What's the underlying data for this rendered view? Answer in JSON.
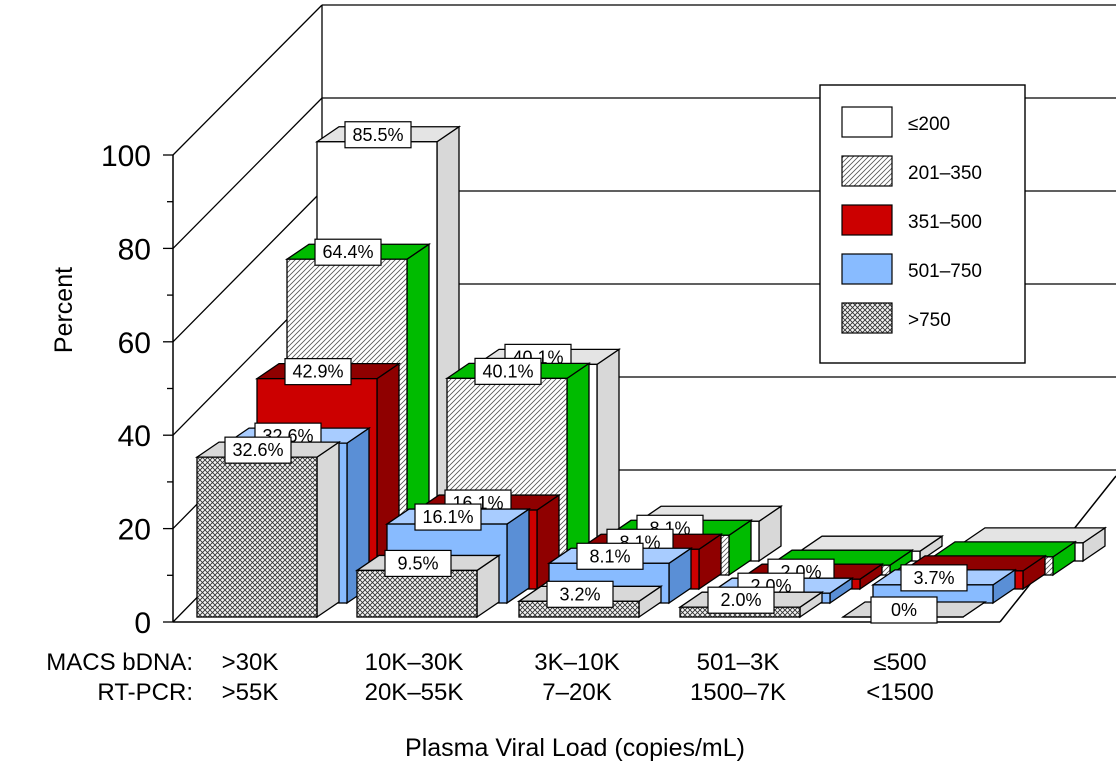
{
  "chart_data": {
    "type": "bar",
    "ylabel": "Percent",
    "xlabel": "Plasma Viral Load (copies/mL)",
    "ylim": [
      0,
      100
    ],
    "yticks": [
      "0",
      "20",
      "40",
      "60",
      "80",
      "100"
    ],
    "row_labels": [
      "MACS bDNA:",
      "RT-PCR:"
    ],
    "categories": [
      {
        "bdna": ">30K",
        "rtpcr": ">55K"
      },
      {
        "bdna": "10K–30K",
        "rtpcr": "20K–55K"
      },
      {
        "bdna": "3K–10K",
        "rtpcr": "7–20K"
      },
      {
        "bdna": "501–3K",
        "rtpcr": "1500–7K"
      },
      {
        "bdna": "≤500",
        "rtpcr": "<1500"
      }
    ],
    "series": [
      {
        "name": "≤200",
        "color": "#ffffff",
        "pattern": "none",
        "values": [
          85.5,
          40.1,
          8.1,
          2.0,
          3.7
        ],
        "labels": [
          "85.5%",
          "40.1%",
          "",
          "",
          ""
        ]
      },
      {
        "name": "201–350",
        "color": "#ffffff",
        "pattern": "diag",
        "values": [
          64.4,
          40.1,
          8.1,
          2.0,
          3.7
        ],
        "labels": [
          "64.4%",
          "40.1%",
          "8.1%",
          "",
          ""
        ]
      },
      {
        "name": "351–500",
        "color": "#cc0000",
        "pattern": "none",
        "values": [
          42.9,
          16.1,
          8.1,
          2.0,
          3.7
        ],
        "labels": [
          "42.9%",
          "16.1%",
          "8.1%",
          "2.0%",
          ""
        ]
      },
      {
        "name": "501–750",
        "color": "#88bbff",
        "pattern": "none",
        "values": [
          32.6,
          16.1,
          8.1,
          2.0,
          3.7
        ],
        "labels": [
          "32.6%",
          "16.1%",
          "8.1%",
          "2.0%",
          "3.7%"
        ]
      },
      {
        "name": ">750",
        "color": "#ffffff",
        "pattern": "cross",
        "values": [
          32.6,
          9.5,
          3.2,
          2.0,
          0
        ],
        "labels": [
          "32.6%",
          "9.5%",
          "3.2%",
          "2.0%",
          "0%"
        ]
      }
    ],
    "side_colors": {
      "white": "#d8d8d8",
      "green": "#00bb00",
      "red_dark": "#8f0000",
      "blue_dark": "#5a8fd6"
    },
    "legend": [
      "≤200",
      "201–350",
      "351–500",
      "501–750",
      ">750"
    ],
    "legend_position": "top-right"
  }
}
